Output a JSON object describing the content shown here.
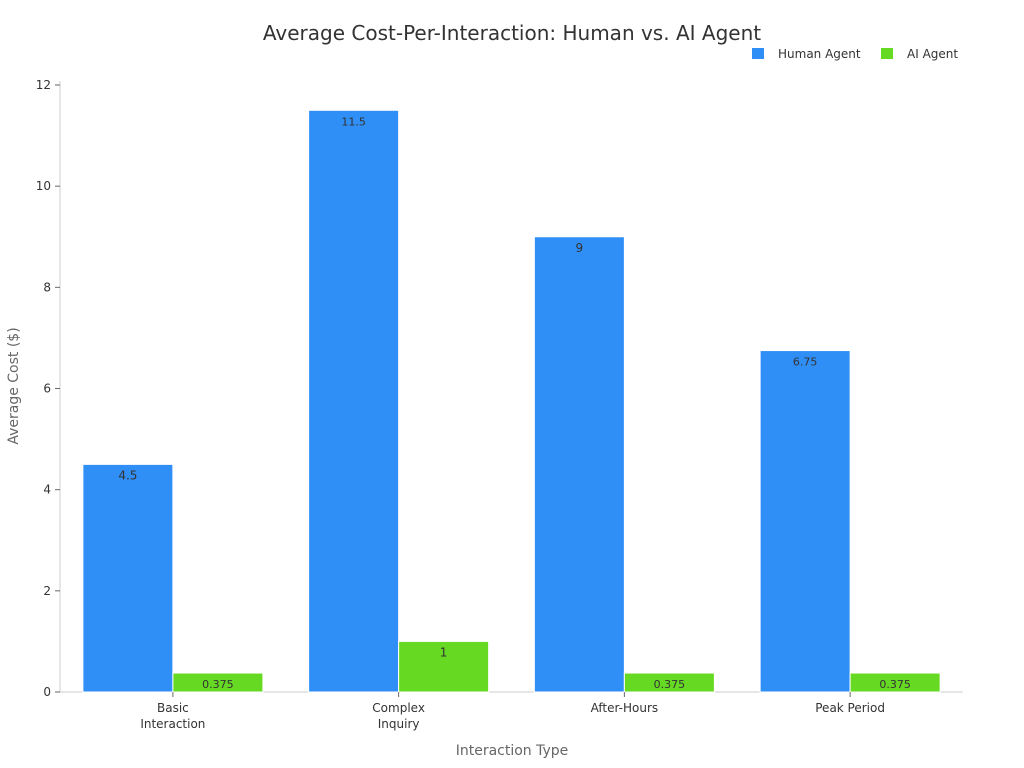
{
  "chart_data": {
    "type": "bar",
    "title": "Average Cost-Per-Interaction: Human vs. AI Agent",
    "xlabel": "Interaction Type",
    "ylabel": "Average Cost ($)",
    "categories": [
      [
        "Basic",
        "Interaction"
      ],
      [
        "Complex",
        "Inquiry"
      ],
      [
        "After-Hours"
      ],
      [
        "Peak Period"
      ]
    ],
    "series": [
      {
        "name": "Human Agent",
        "color": "#2f8ff7",
        "values": [
          4.5,
          11.5,
          9,
          6.75
        ],
        "labels": [
          "4.5",
          "11.5",
          "9",
          "6.75"
        ]
      },
      {
        "name": "AI Agent",
        "color": "#66d923",
        "values": [
          0.375,
          1,
          0.375,
          0.375
        ],
        "labels": [
          "0.375",
          "1",
          "0.375",
          "0.375"
        ]
      }
    ],
    "ylim": [
      0,
      12
    ],
    "yticks": [
      0,
      2,
      4,
      6,
      8,
      10,
      12
    ],
    "grid": false,
    "legend": "top-right"
  }
}
